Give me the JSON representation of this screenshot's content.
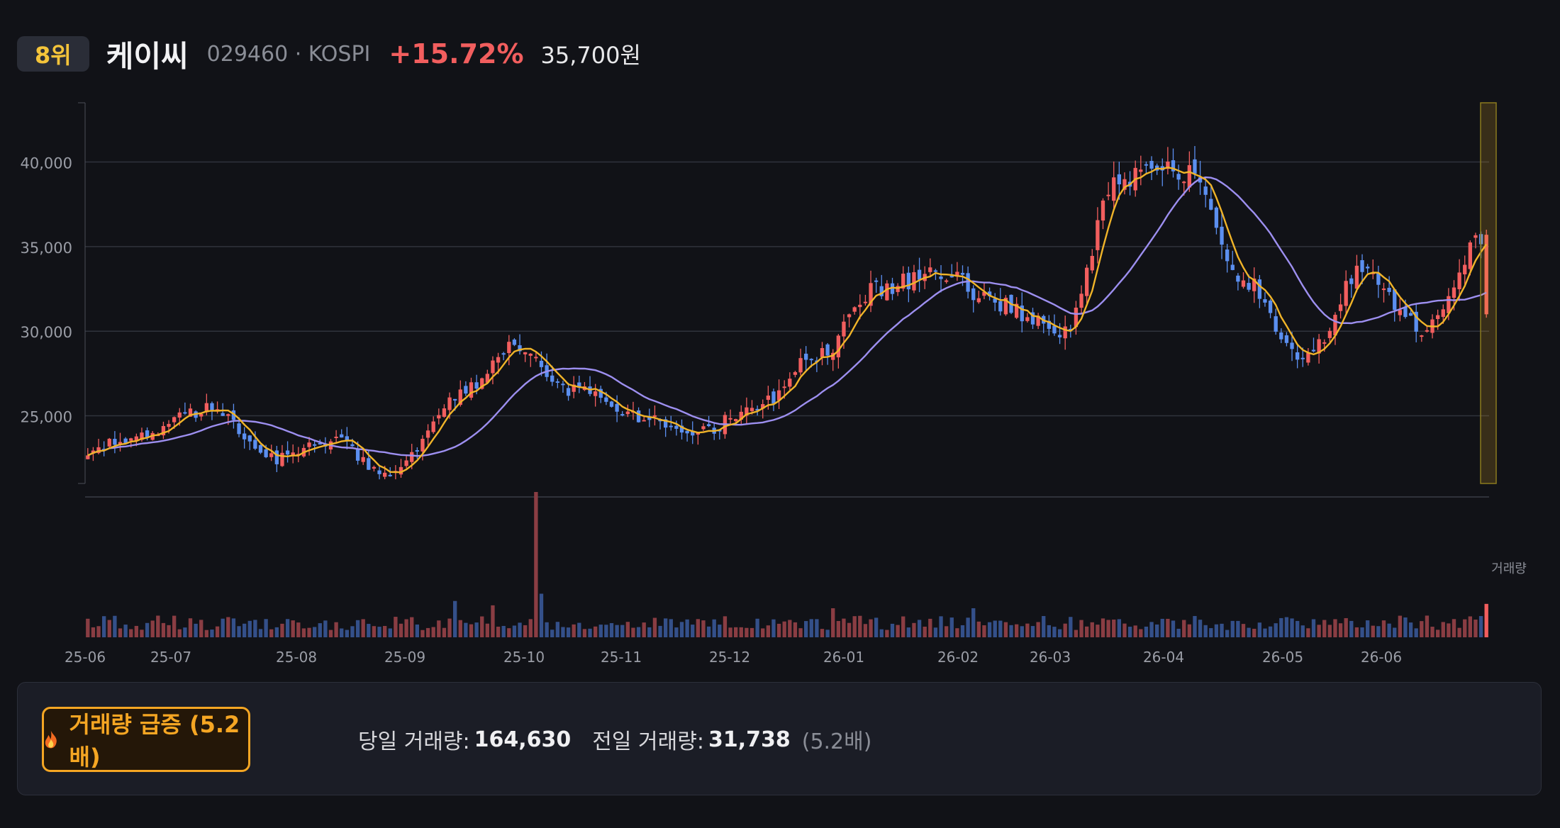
{
  "header": {
    "rank": "8위",
    "name": "케이씨",
    "code_market": "029460 · KOSPI",
    "change_pct": "+15.72%",
    "price": "35,700원"
  },
  "colors": {
    "background": "#111217",
    "up": "#f25e5e",
    "down": "#5b8ff0",
    "ma_short": "#f0b429",
    "ma_long": "#9d8ff0",
    "accent": "#f5a623",
    "rank": "#f4c43a"
  },
  "volume_panel": {
    "surge_icon": "fire-icon",
    "surge_label": "거래량 급증 (5.2배)",
    "today_label": "당일 거래량:",
    "today_value": "164,630",
    "prev_label": "전일 거래량:",
    "prev_value": "31,738",
    "ratio": "(5.2배)"
  },
  "chart_data": {
    "type": "candlestick",
    "y_ticks": [
      "40,000",
      "35,000",
      "30,000",
      "25,000"
    ],
    "ylim": [
      21000,
      43500
    ],
    "grid": true,
    "x_ticks": [
      "25-06",
      "25-07",
      "25-08",
      "25-09",
      "25-10",
      "25-11",
      "25-12",
      "26-01",
      "26-02",
      "26-03",
      "26-04",
      "26-05",
      "26-06"
    ],
    "volume_label": "거래량",
    "key_points": [
      {
        "date": "25-06",
        "close": 23000
      },
      {
        "date": "25-07",
        "close": 24000
      },
      {
        "date": "25-07",
        "close": 25500
      },
      {
        "date": "25-08",
        "close": 22500
      },
      {
        "date": "25-08",
        "close": 23500
      },
      {
        "date": "25-09",
        "close": 21500
      },
      {
        "date": "25-10",
        "close": 26000
      },
      {
        "date": "25-10",
        "close": 29000
      },
      {
        "date": "25-11",
        "close": 26500
      },
      {
        "date": "25-12",
        "close": 25000
      },
      {
        "date": "25-12",
        "close": 24000
      },
      {
        "date": "26-01",
        "close": 25500
      },
      {
        "date": "26-01",
        "close": 28500
      },
      {
        "date": "26-02",
        "close": 32500
      },
      {
        "date": "26-03",
        "close": 33500
      },
      {
        "date": "26-03",
        "close": 31500
      },
      {
        "date": "26-04",
        "close": 30000
      },
      {
        "date": "26-05",
        "close": 39000
      },
      {
        "date": "26-05",
        "close": 39500
      },
      {
        "date": "26-06",
        "close": 33000
      },
      {
        "date": "26-06",
        "close": 28500
      },
      {
        "date": "26-06",
        "close": 33500
      },
      {
        "date": "26-06",
        "close": 30000
      },
      {
        "date": "26-06",
        "close": 35700
      }
    ],
    "last_candle": {
      "open": 31000,
      "close": 35700,
      "high": 36000,
      "low": 30800,
      "volume": 164630
    },
    "prev_volume": 31738
  }
}
